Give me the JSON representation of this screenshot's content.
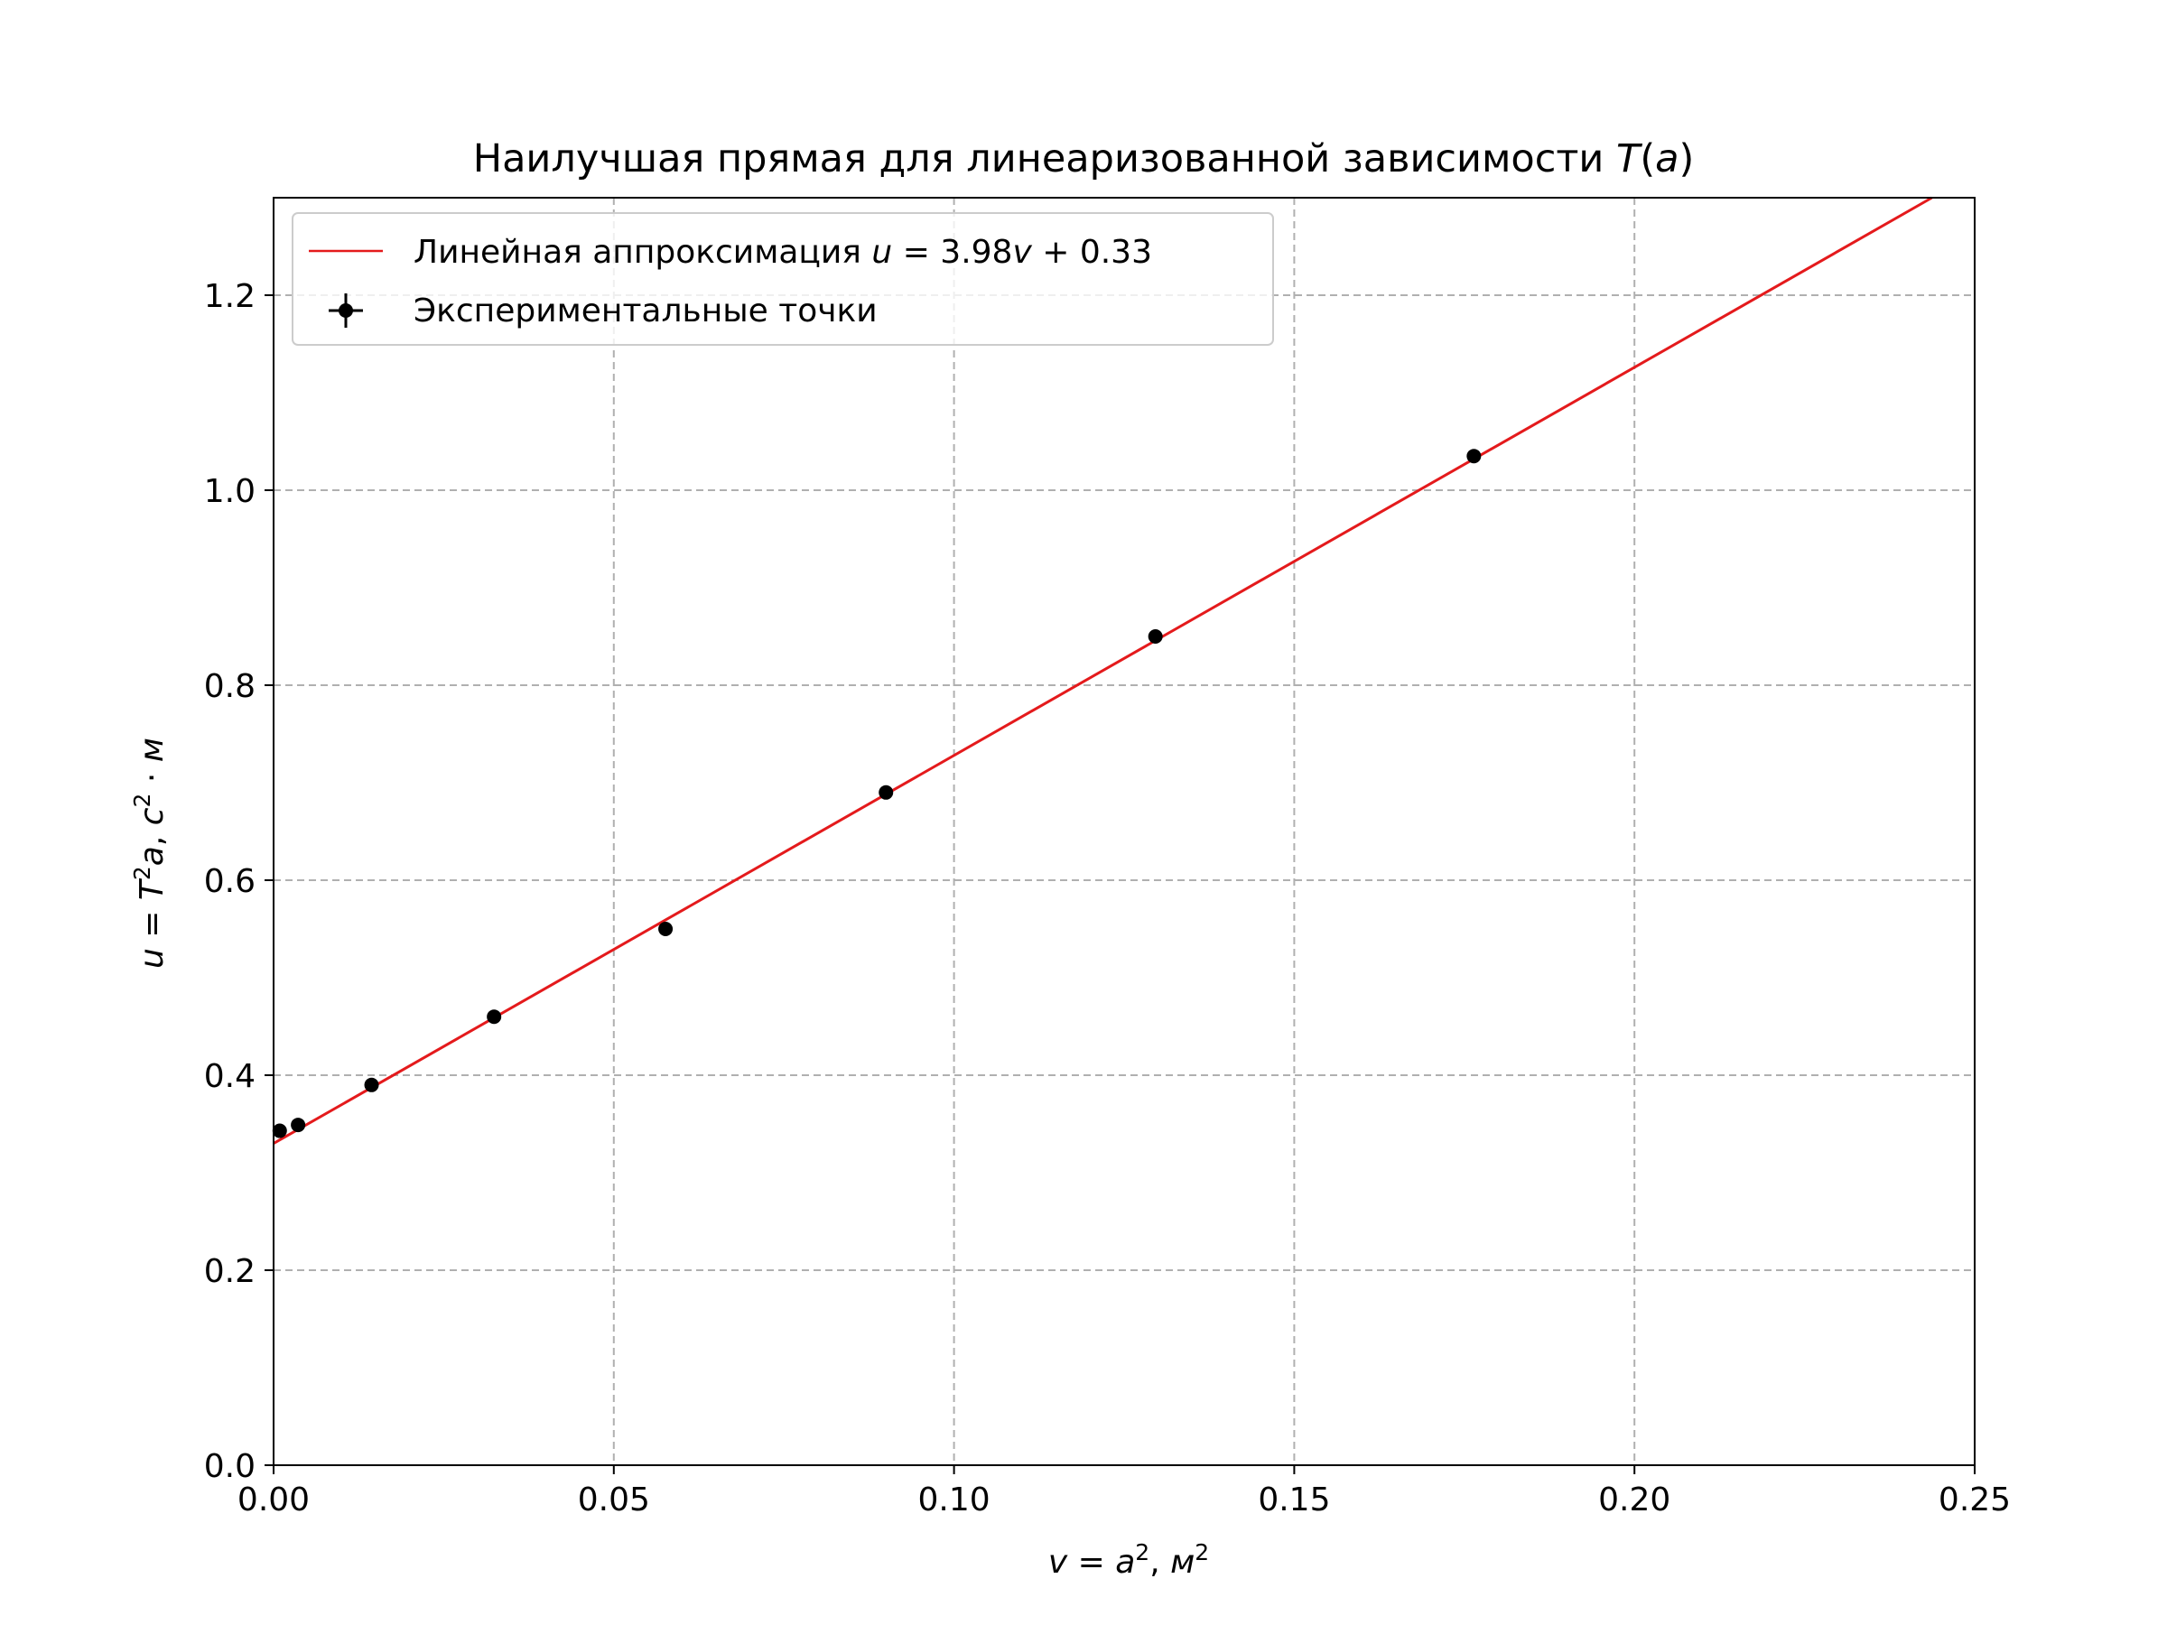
{
  "chart_data": {
    "type": "scatter",
    "title": {
      "text": "Наилучшая прямая для линеаризованной зависимости ",
      "math_var": "T",
      "math_paren_open": "(",
      "math_arg": "a",
      "math_paren_close": ")"
    },
    "xlabel": {
      "lhs": "v",
      "eq": " = ",
      "var": "a",
      "exp": "2",
      "sep": ", ",
      "unit": "м",
      "unit_exp": "2"
    },
    "ylabel": {
      "lhs": "u",
      "eq": " = ",
      "var1": "T",
      "exp1": "2",
      "var2": "a",
      "sep": ", ",
      "unit1": "с",
      "unit_exp": "2",
      "dot": " · ",
      "unit2": "м"
    },
    "xlim": [
      0.0,
      0.25
    ],
    "ylim": [
      0.0,
      1.3
    ],
    "xticks": [
      0.0,
      0.05,
      0.1,
      0.15,
      0.2,
      0.25
    ],
    "xtick_labels": [
      "0.00",
      "0.05",
      "0.10",
      "0.15",
      "0.20",
      "0.25"
    ],
    "yticks": [
      0.0,
      0.2,
      0.4,
      0.6,
      0.8,
      1.0,
      1.2
    ],
    "ytick_labels": [
      "0.0",
      "0.2",
      "0.4",
      "0.6",
      "0.8",
      "1.0",
      "1.2"
    ],
    "grid": true,
    "legend_position": "top-left",
    "series": [
      {
        "kind": "line",
        "color": "#e41a1c",
        "slope": 3.98,
        "intercept": 0.33,
        "legend": {
          "text": "Линейная аппроксимация ",
          "formula_var1": "u",
          "formula_eq": " = 3.98",
          "formula_var2": "v",
          "formula_rest": " + 0.33"
        }
      },
      {
        "kind": "points",
        "color": "#000000",
        "legend": {
          "text": "Экспериментальные точки"
        },
        "points": [
          {
            "x": 0.0009,
            "y": 0.343
          },
          {
            "x": 0.0036,
            "y": 0.349
          },
          {
            "x": 0.0144,
            "y": 0.39
          },
          {
            "x": 0.0324,
            "y": 0.46
          },
          {
            "x": 0.0576,
            "y": 0.55
          },
          {
            "x": 0.09,
            "y": 0.69
          },
          {
            "x": 0.1296,
            "y": 0.85
          },
          {
            "x": 0.1764,
            "y": 1.035
          }
        ]
      }
    ]
  }
}
